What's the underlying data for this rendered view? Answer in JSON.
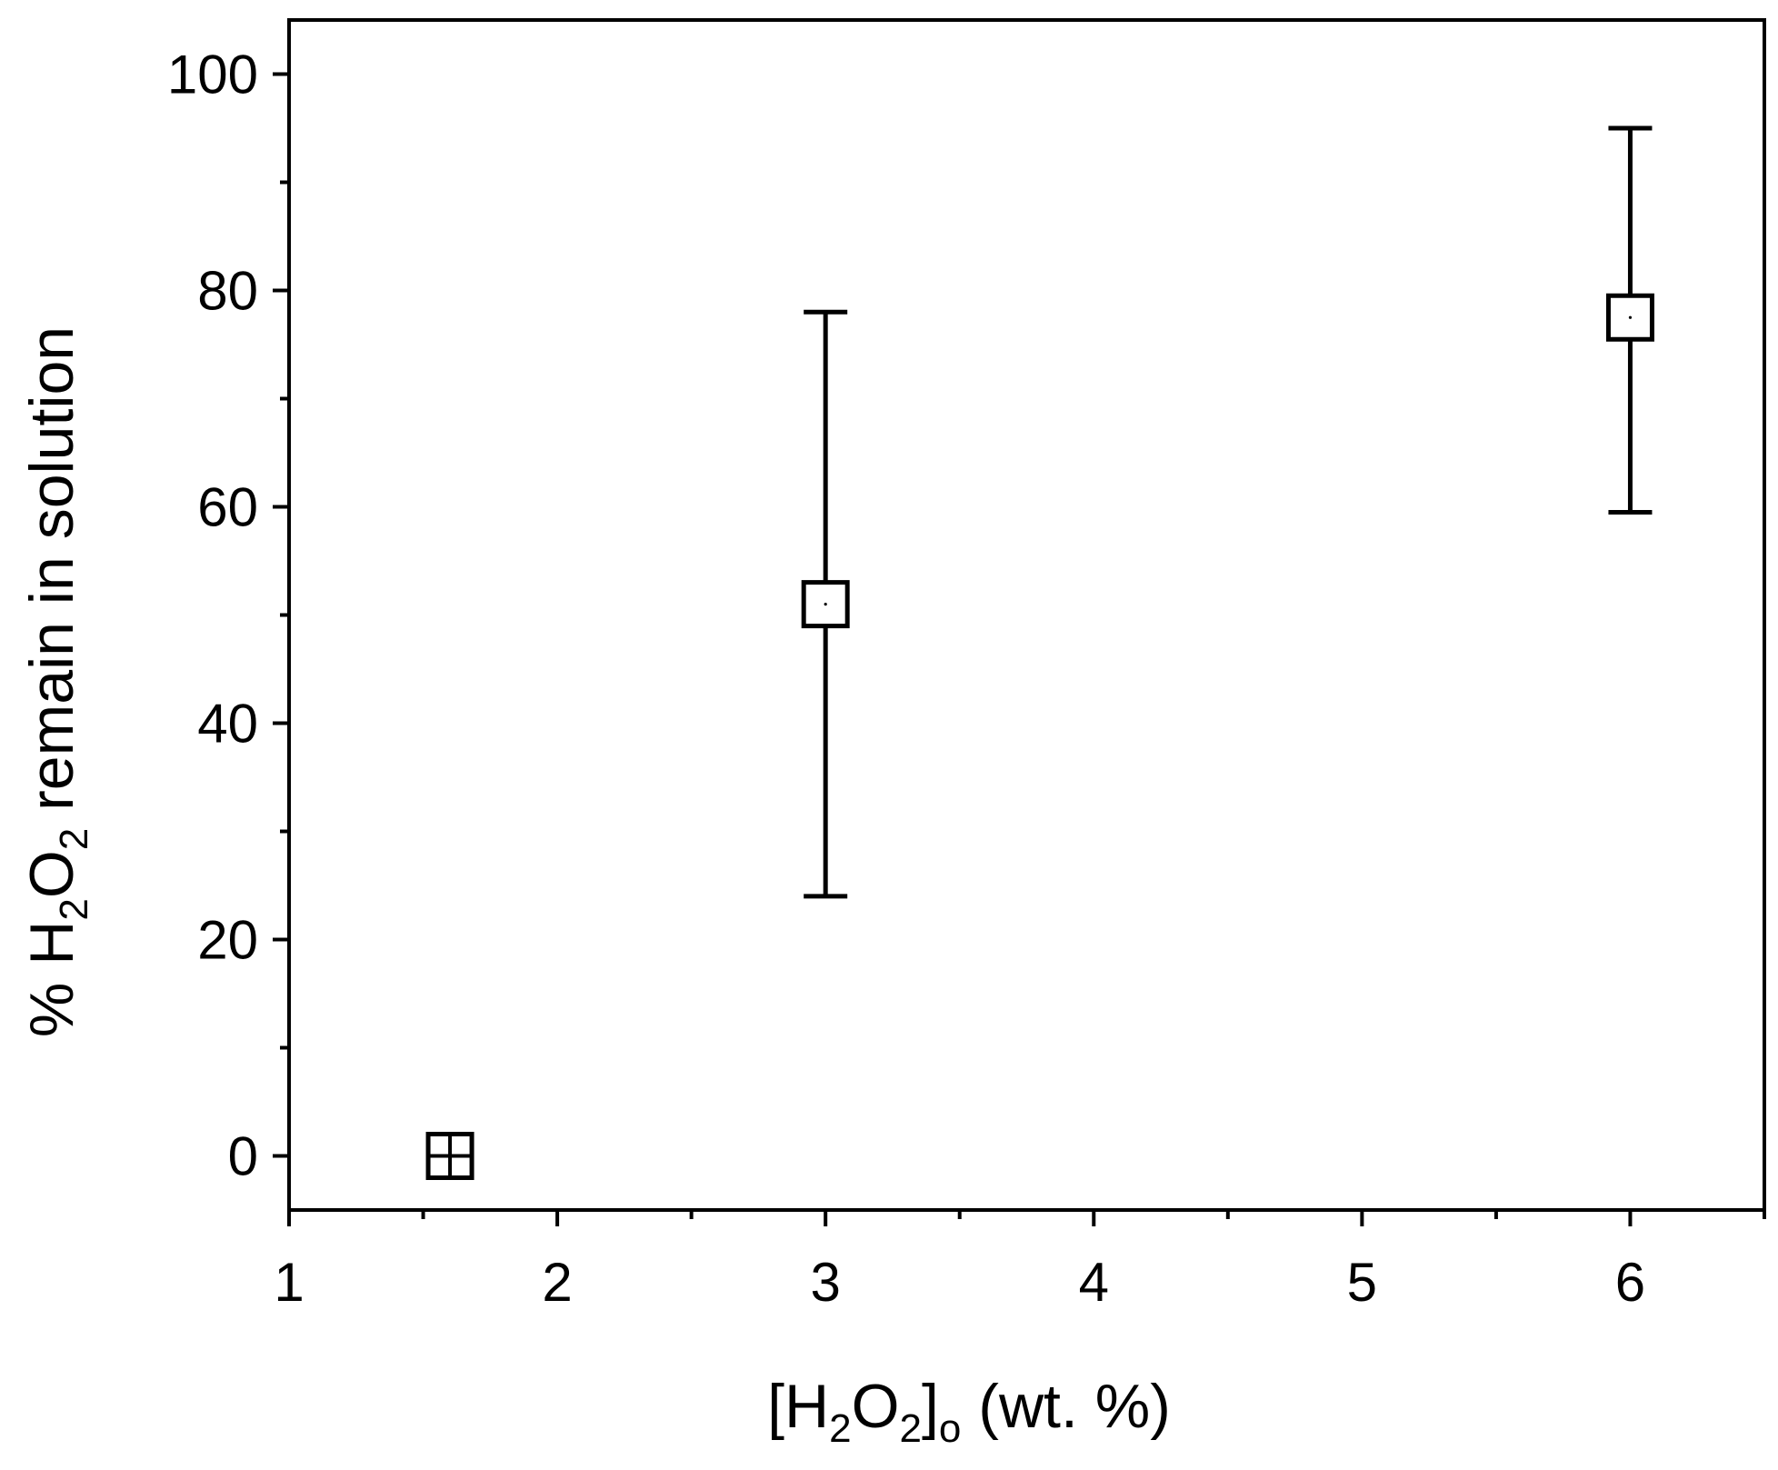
{
  "chart_data": {
    "type": "scatter",
    "title": "",
    "xlabel": {
      "prefix": "[H",
      "sub1": "2",
      "mid": "O",
      "sub2": "2",
      "close": "]",
      "sub3": "o",
      "suffix": " (wt. %)"
    },
    "ylabel": {
      "prefix": "% H",
      "sub1": "2",
      "mid": "O",
      "sub2": "2",
      "suffix": " remain in solution"
    },
    "xlim": [
      1,
      6.5
    ],
    "ylim": [
      -5,
      105
    ],
    "x_ticks": [
      1,
      2,
      3,
      4,
      5,
      6
    ],
    "x_minor_ticks": [
      1.5,
      2.5,
      3.5,
      4.5,
      5.5,
      6.5
    ],
    "y_ticks": [
      0,
      20,
      40,
      60,
      80,
      100
    ],
    "y_minor_ticks": [
      10,
      30,
      50,
      70,
      90
    ],
    "grid": false,
    "legend": "none",
    "marker": "open-square",
    "color": "#000000",
    "points": [
      {
        "x": 1.6,
        "y": 0,
        "err_low": 0,
        "err_high": 0
      },
      {
        "x": 3,
        "y": 51,
        "err_low": 24,
        "err_high": 78
      },
      {
        "x": 6,
        "y": 77.5,
        "err_low": 59.5,
        "err_high": 95
      }
    ]
  }
}
